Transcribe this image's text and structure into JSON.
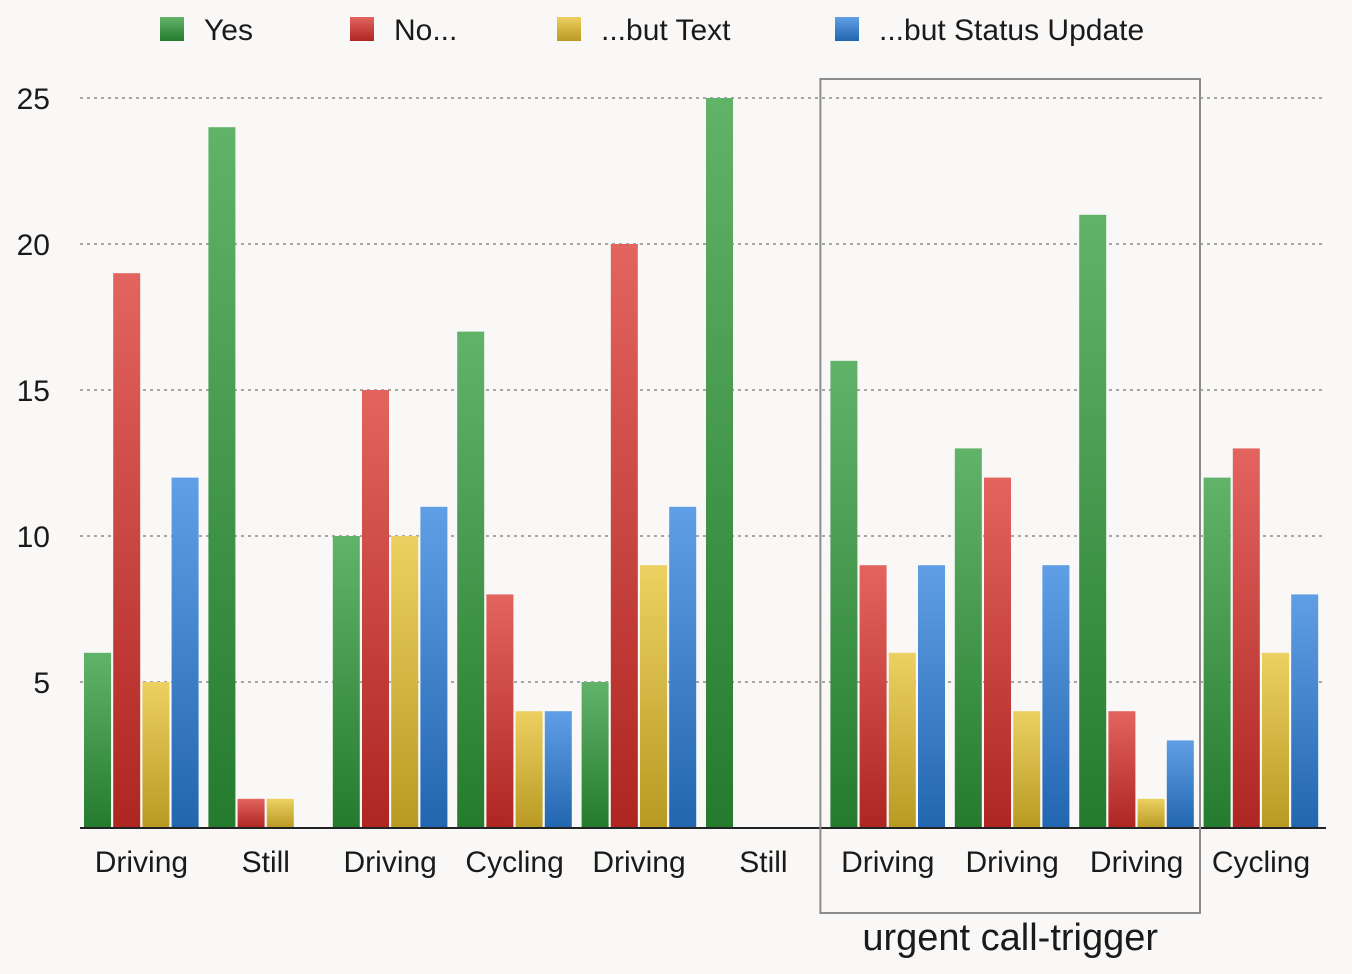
{
  "chart_data": {
    "type": "bar",
    "title": "",
    "xlabel": "",
    "ylabel": "",
    "ylim": [
      0,
      25
    ],
    "yticks": [
      5,
      10,
      15,
      20,
      25
    ],
    "grid": true,
    "legend_position": "top",
    "categories": [
      "Driving",
      "Still",
      "Driving",
      "Cycling",
      "Driving",
      "Still",
      "Driving",
      "Driving",
      "Driving",
      "Cycling"
    ],
    "series": [
      {
        "name": "Yes",
        "color": "#2e9a38",
        "values": [
          6,
          24,
          10,
          17,
          5,
          25,
          16,
          13,
          21,
          12
        ]
      },
      {
        "name": "No...",
        "color": "#d9302a",
        "values": [
          19,
          1,
          15,
          8,
          20,
          0,
          9,
          12,
          4,
          13
        ]
      },
      {
        "name": "...but Text",
        "color": "#e6c02c",
        "values": [
          5,
          1,
          10,
          4,
          9,
          0,
          6,
          4,
          1,
          6
        ]
      },
      {
        "name": "...but Status Update",
        "color": "#2b7fdc",
        "values": [
          12,
          0,
          11,
          4,
          11,
          0,
          9,
          9,
          3,
          8
        ]
      }
    ],
    "annotations": [
      {
        "text": "urgent call-trigger",
        "categories": [
          6,
          7,
          8
        ]
      }
    ]
  }
}
